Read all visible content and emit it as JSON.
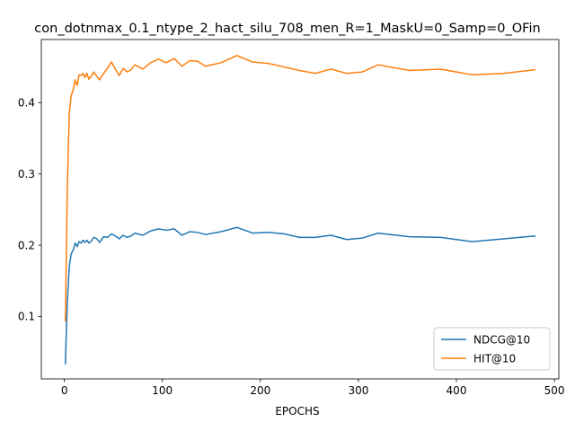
{
  "chart_data": {
    "type": "line",
    "title": "con_dotnmax_0.1_ntype_2_hact_silu_708_men_R=1_MaskU=0_Samp=0_OFin",
    "xlabel": "EPOCHS",
    "ylabel": "",
    "xlim": [
      -23.5,
      504.5
    ],
    "ylim": [
      0.0125,
      0.4885
    ],
    "xticks": [
      0,
      100,
      200,
      300,
      400,
      500
    ],
    "yticks": [
      0.1,
      0.2,
      0.3,
      0.4
    ],
    "xtick_labels": [
      "0",
      "100",
      "200",
      "300",
      "400",
      "500"
    ],
    "ytick_labels": [
      "0.1",
      "0.2",
      "0.3",
      "0.4"
    ],
    "grid": false,
    "legend_position": "lower right",
    "series": [
      {
        "name": "NDCG@10",
        "color": "#1f77b4",
        "x": [
          1,
          3,
          5,
          7,
          9,
          11,
          13,
          15,
          17,
          19,
          21,
          23,
          25,
          27,
          30,
          33,
          36,
          40,
          44,
          48,
          52,
          56,
          60,
          64,
          68,
          72,
          80,
          88,
          96,
          104,
          112,
          120,
          128,
          136,
          144,
          160,
          176,
          192,
          208,
          224,
          240,
          256,
          272,
          288,
          304,
          320,
          352,
          384,
          416,
          448,
          480
        ],
        "y": [
          0.034,
          0.12,
          0.17,
          0.188,
          0.193,
          0.203,
          0.198,
          0.205,
          0.203,
          0.207,
          0.204,
          0.207,
          0.203,
          0.205,
          0.211,
          0.209,
          0.204,
          0.212,
          0.211,
          0.216,
          0.213,
          0.209,
          0.214,
          0.211,
          0.213,
          0.217,
          0.214,
          0.22,
          0.223,
          0.221,
          0.223,
          0.214,
          0.219,
          0.218,
          0.215,
          0.219,
          0.225,
          0.217,
          0.218,
          0.216,
          0.211,
          0.211,
          0.214,
          0.208,
          0.21,
          0.217,
          0.212,
          0.211,
          0.205,
          0.209,
          0.213
        ]
      },
      {
        "name": "HIT@10",
        "color": "#ff7f0e",
        "x": [
          1,
          3,
          5,
          7,
          9,
          11,
          13,
          15,
          17,
          19,
          21,
          23,
          25,
          27,
          30,
          33,
          36,
          40,
          44,
          48,
          52,
          56,
          60,
          64,
          68,
          72,
          80,
          88,
          96,
          104,
          112,
          120,
          128,
          136,
          144,
          160,
          176,
          192,
          208,
          224,
          240,
          256,
          272,
          288,
          304,
          320,
          352,
          384,
          416,
          448,
          480
        ],
        "y": [
          0.094,
          0.28,
          0.385,
          0.41,
          0.418,
          0.432,
          0.424,
          0.439,
          0.438,
          0.441,
          0.435,
          0.441,
          0.433,
          0.436,
          0.443,
          0.437,
          0.432,
          0.441,
          0.448,
          0.457,
          0.447,
          0.438,
          0.448,
          0.443,
          0.446,
          0.453,
          0.447,
          0.456,
          0.461,
          0.456,
          0.462,
          0.451,
          0.459,
          0.458,
          0.451,
          0.456,
          0.466,
          0.457,
          0.455,
          0.45,
          0.445,
          0.441,
          0.447,
          0.441,
          0.443,
          0.453,
          0.445,
          0.447,
          0.439,
          0.441,
          0.446
        ]
      }
    ]
  }
}
